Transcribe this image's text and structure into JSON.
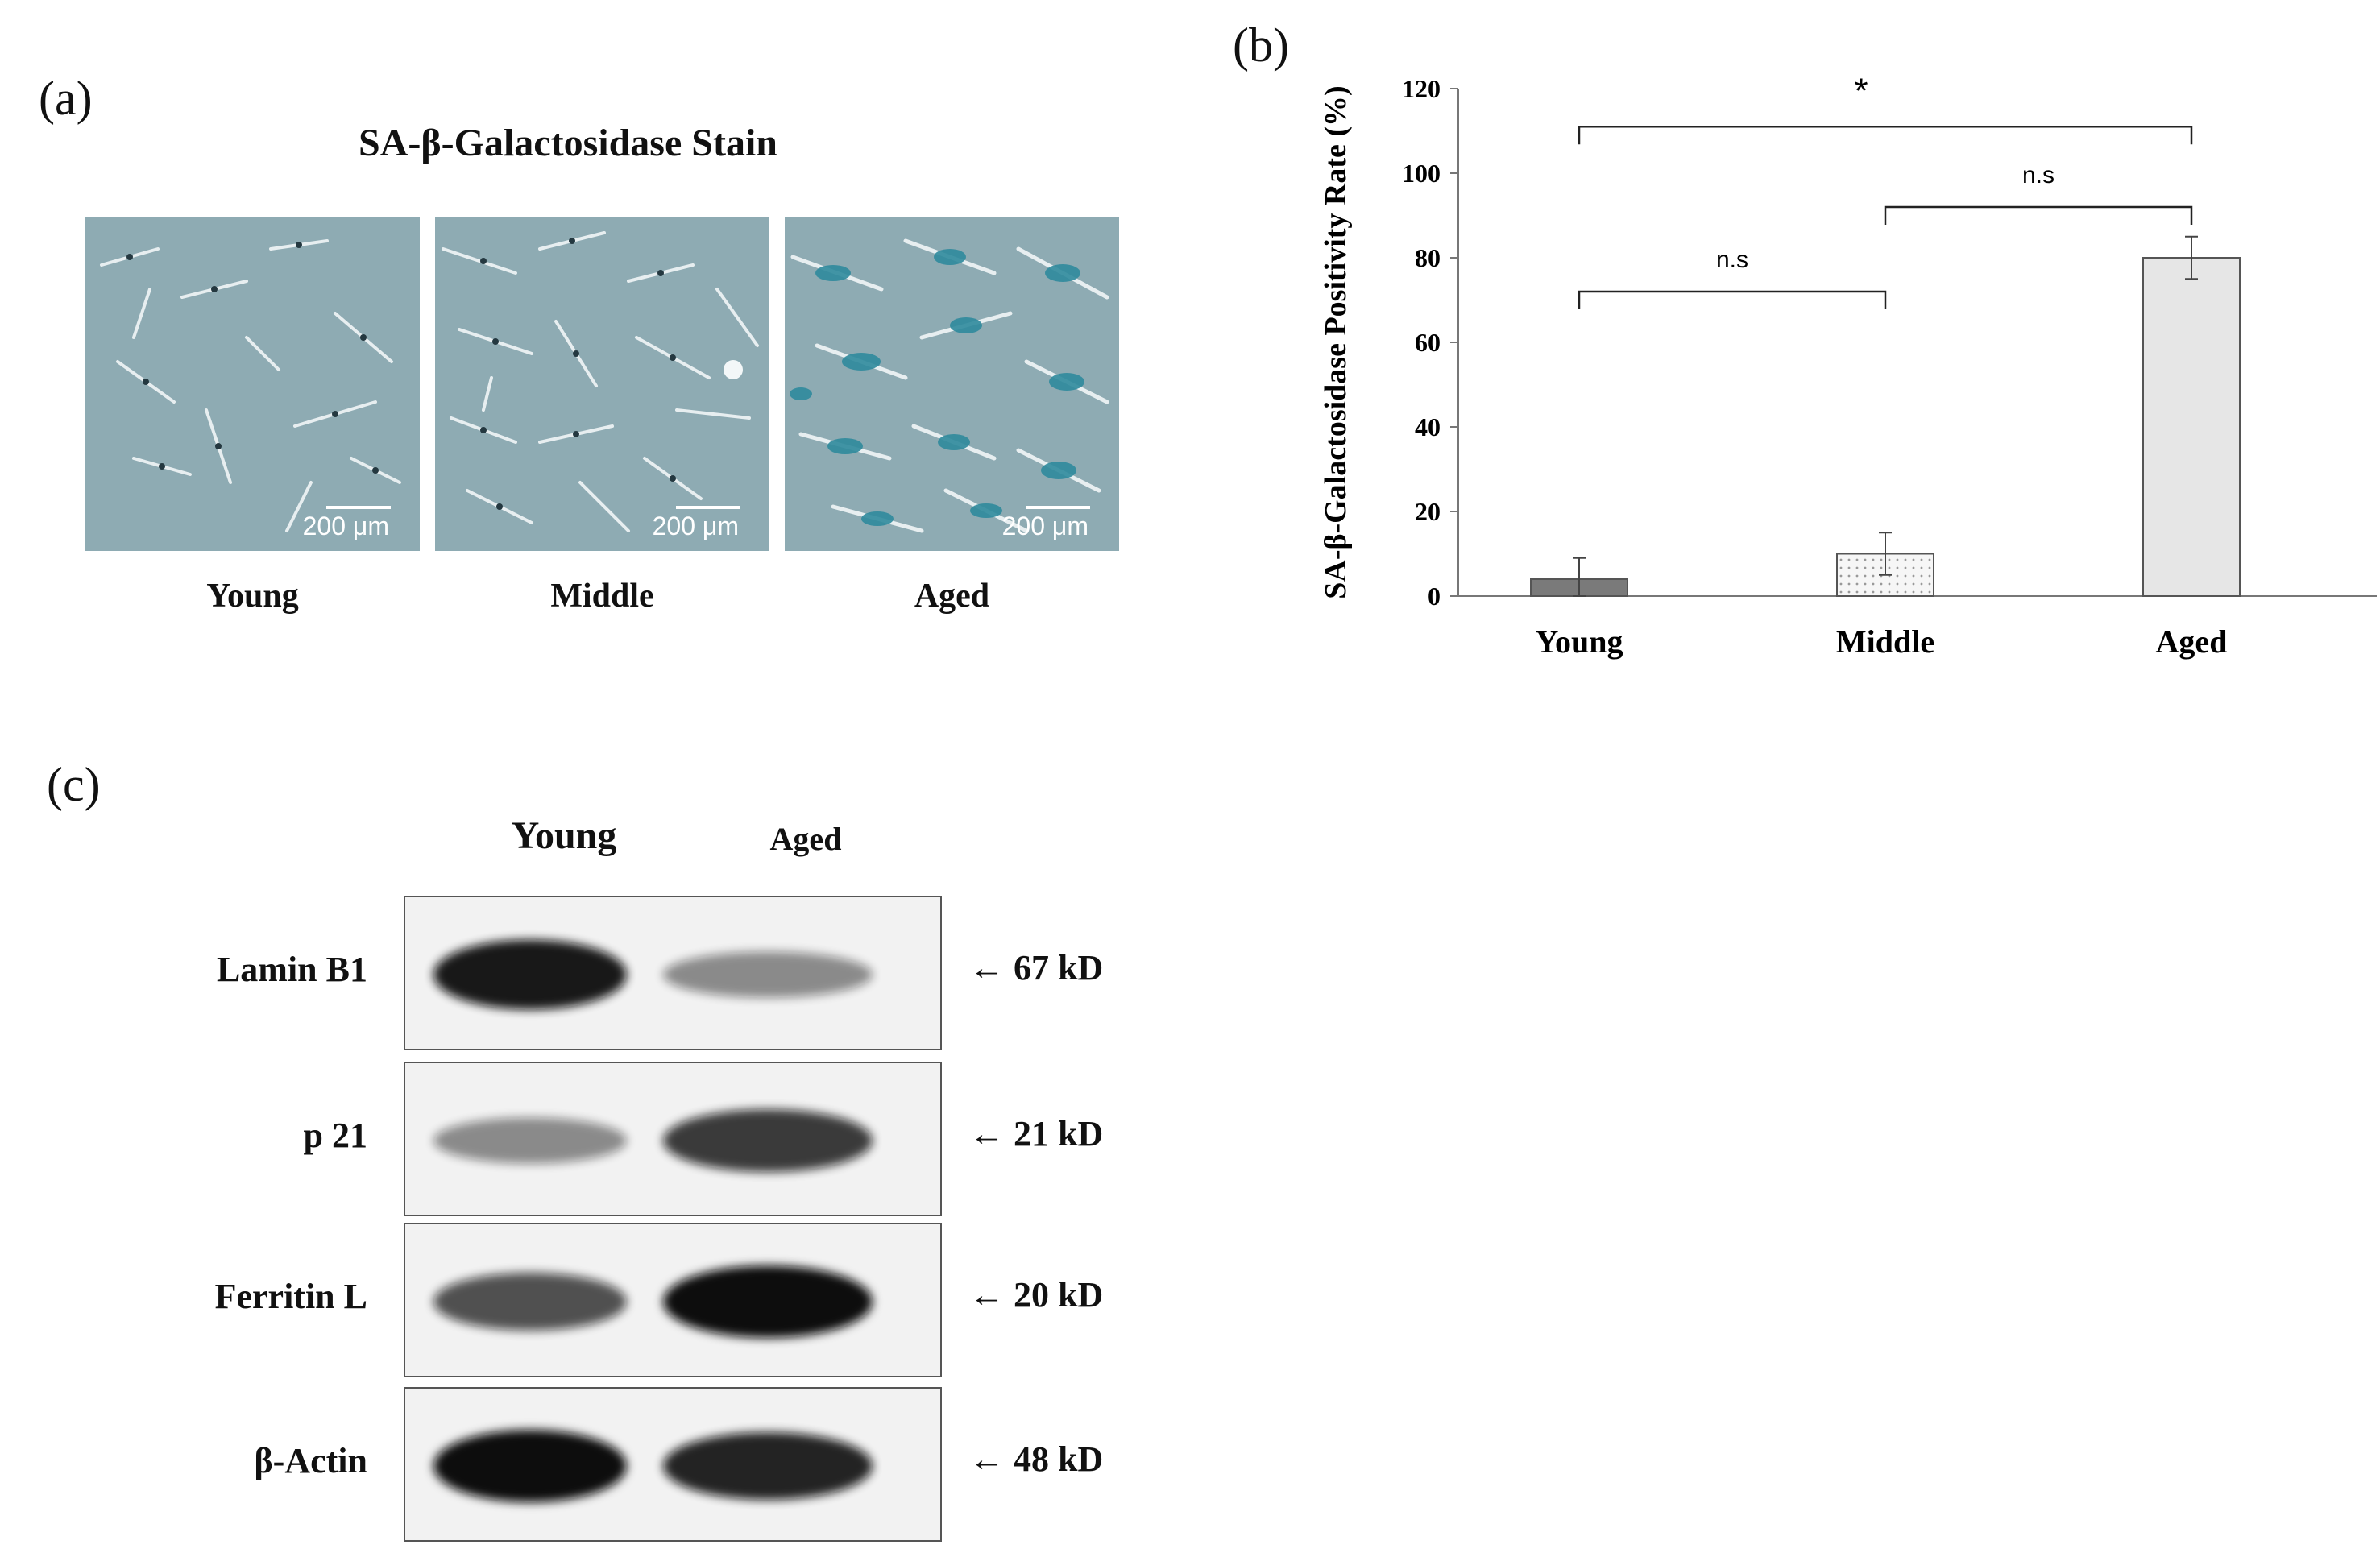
{
  "panels": {
    "a": {
      "tag": "(a)",
      "title": "SA-β-Galactosidase Stain",
      "images": [
        {
          "label": "Young",
          "scale": "200 μm"
        },
        {
          "label": "Middle",
          "scale": "200 μm"
        },
        {
          "label": "Aged",
          "scale": "200 μm"
        }
      ]
    },
    "b": {
      "tag": "(b)"
    },
    "c": {
      "tag": "(c)",
      "lane_labels": [
        "Young",
        "Aged"
      ],
      "rows": [
        {
          "label": "Lamin B1",
          "kd": "← 67 kD",
          "young_intensity": 0.95,
          "aged_intensity": 0.45
        },
        {
          "label": "p 21",
          "kd": "← 21 kD",
          "young_intensity": 0.45,
          "aged_intensity": 0.8
        },
        {
          "label": "Ferritin L",
          "kd": "← 20 kD",
          "young_intensity": 0.7,
          "aged_intensity": 1.0
        },
        {
          "label": "β-Actin",
          "kd": "← 48 kD",
          "young_intensity": 1.0,
          "aged_intensity": 0.9
        }
      ]
    }
  },
  "chart_data": {
    "type": "bar",
    "categories": [
      "Young",
      "Middle",
      "Aged"
    ],
    "values": [
      4,
      10,
      80
    ],
    "errors": [
      5,
      5,
      5
    ],
    "ylabel": "SA-β-Galactosidase Positivity Rate (%)",
    "xlabel": "",
    "ylim": [
      0,
      120
    ],
    "yticks": [
      0,
      20,
      40,
      60,
      80,
      100,
      120
    ],
    "bar_colors": [
      "#7a7a7a",
      "#f4f4f4",
      "#e6e6e6"
    ],
    "significance": [
      {
        "from": "Young",
        "to": "Middle",
        "label": "n.s"
      },
      {
        "from": "Middle",
        "to": "Aged",
        "label": "n.s"
      },
      {
        "from": "Young",
        "to": "Aged",
        "label": "*"
      }
    ]
  }
}
